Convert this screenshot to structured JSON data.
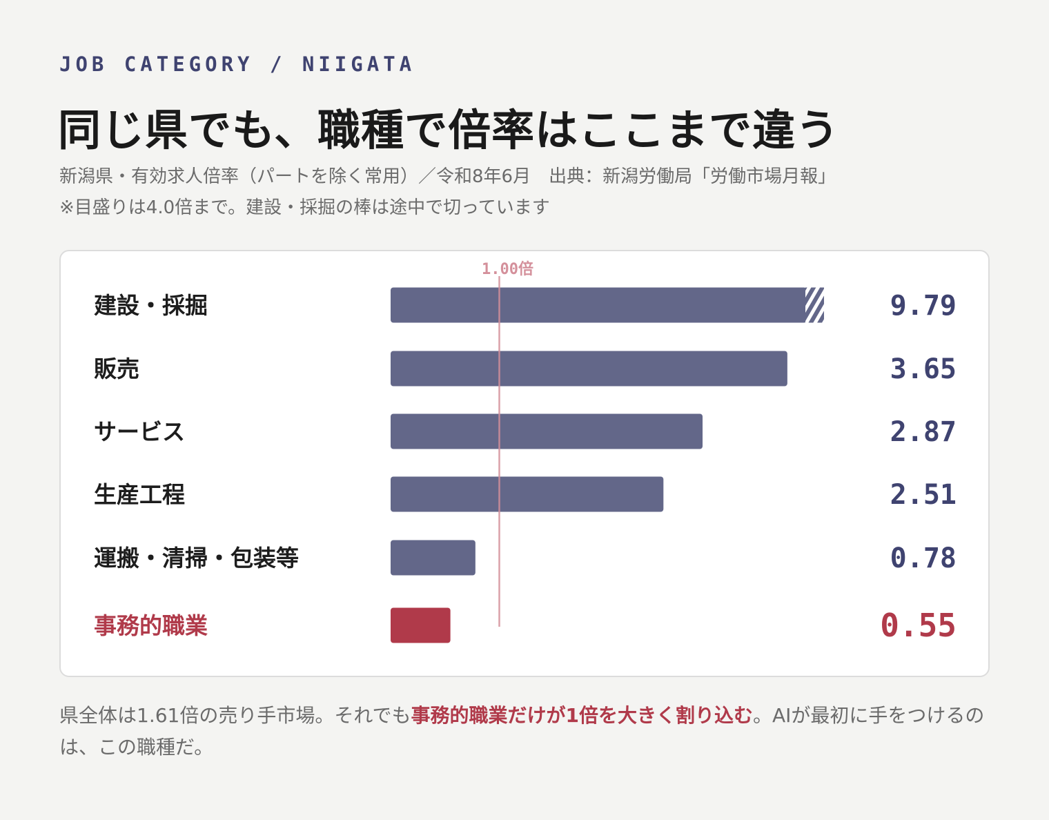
{
  "header": {
    "eyebrow": "JOB CATEGORY / NIIGATA",
    "title": "同じ県でも、職種で倍率はここまで違う",
    "source_line": "新潟県・有効求人倍率（パートを除く常用）／令和8年6月　出典：新潟労働局「労働市場月報」",
    "note_line": "※目盛りは4.0倍まで。建設・採掘の棒は途中で切っています"
  },
  "chart_data": {
    "type": "bar",
    "orientation": "horizontal",
    "categories": [
      "建設・採掘",
      "販売",
      "サービス",
      "生産工程",
      "運搬・清掃・包装等",
      "事務的職業"
    ],
    "values": [
      9.79,
      3.65,
      2.87,
      2.51,
      0.78,
      0.55
    ],
    "value_labels": [
      "9.79",
      "3.65",
      "2.87",
      "2.51",
      "0.78",
      "0.55"
    ],
    "xlim": [
      0,
      4.0
    ],
    "truncated": [
      "建設・採掘"
    ],
    "highlight": "事務的職業",
    "reference_line": {
      "value": 1.0,
      "label": "1.00倍"
    },
    "grid": false
  },
  "colors": {
    "bar": "#636789",
    "highlight": "#b03a4a",
    "reference": "#d4909b",
    "value_text": "#3f4370",
    "label_text": "#1d1d1d"
  },
  "footer": {
    "text_before": "県全体は1.61倍の売り手市場。それでも",
    "text_emphasis": "事務的職業だけが1倍を大きく割り込む",
    "text_after": "。AIが最初に手をつけるのは、この職種だ。"
  }
}
